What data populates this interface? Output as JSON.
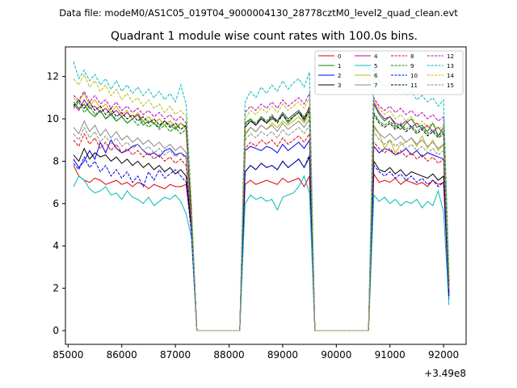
{
  "suptitle": "Data file: modeM0/AS1C05_019T04_9000004130_28778cztM0_level2_quad_clean.evt",
  "chart_data": {
    "type": "line",
    "title": "Quadrant 1 module wise count rates with 100.0s bins.",
    "xlabel": "",
    "ylabel": "",
    "x_offset_label": "+3.49e8",
    "xlim": [
      84950,
      92420
    ],
    "ylim": [
      -0.65,
      13.4
    ],
    "xticks": [
      85000,
      86000,
      87000,
      88000,
      89000,
      90000,
      91000,
      92000
    ],
    "yticks": [
      0,
      2,
      4,
      6,
      8,
      10,
      12
    ],
    "grid": false,
    "legend_position": "top-right",
    "x": [
      85100,
      85200,
      85300,
      85400,
      85500,
      85600,
      85700,
      85800,
      85900,
      86000,
      86100,
      86200,
      86300,
      86400,
      86500,
      86600,
      86700,
      86800,
      86900,
      87000,
      87100,
      87200,
      87300,
      87400,
      87500,
      88200,
      88300,
      88400,
      88500,
      88600,
      88700,
      88800,
      88900,
      89000,
      89100,
      89200,
      89300,
      89400,
      89500,
      89600,
      90600,
      90700,
      90800,
      90900,
      91000,
      91100,
      91200,
      91300,
      91400,
      91500,
      91600,
      91700,
      91800,
      91900,
      92000,
      92100
    ],
    "series": [
      {
        "name": "0",
        "color": "#dd0000",
        "dash": "solid",
        "values": [
          7.8,
          7.3,
          7.1,
          7.0,
          7.2,
          7.1,
          6.9,
          7.0,
          7.1,
          6.9,
          7.0,
          6.8,
          7.0,
          6.9,
          6.7,
          6.9,
          6.8,
          6.7,
          6.9,
          6.8,
          6.8,
          6.9,
          4.8,
          0,
          0,
          0,
          6.9,
          7.1,
          6.9,
          7.0,
          7.1,
          7.0,
          6.9,
          7.2,
          7.0,
          7.1,
          7.2,
          6.8,
          7.3,
          0,
          0,
          7.4,
          7.0,
          7.1,
          7.0,
          7.2,
          6.9,
          7.1,
          7.0,
          6.9,
          7.0,
          6.8,
          7.1,
          6.9,
          7.0,
          1.6
        ]
      },
      {
        "name": "1",
        "color": "#008800",
        "dash": "solid",
        "values": [
          10.8,
          10.5,
          10.7,
          10.3,
          10.1,
          10.4,
          10.0,
          10.2,
          9.9,
          10.1,
          9.8,
          10.0,
          10.2,
          9.7,
          9.9,
          9.8,
          9.6,
          9.9,
          9.7,
          9.5,
          9.8,
          9.6,
          5.5,
          0,
          0,
          0,
          9.8,
          10.0,
          9.7,
          10.1,
          9.8,
          10.0,
          9.9,
          10.2,
          9.8,
          10.1,
          10.3,
          9.9,
          10.4,
          0,
          0,
          10.7,
          10.2,
          9.9,
          10.1,
          9.7,
          9.5,
          9.8,
          10.0,
          9.6,
          9.7,
          9.4,
          9.8,
          9.2,
          9.6,
          2.4
        ]
      },
      {
        "name": "2",
        "color": "#0000ee",
        "dash": "solid",
        "values": [
          8.1,
          7.7,
          8.0,
          8.5,
          8.1,
          8.9,
          8.4,
          9.0,
          8.6,
          8.4,
          8.5,
          8.7,
          8.8,
          8.5,
          8.3,
          8.4,
          8.2,
          8.5,
          8.6,
          8.3,
          8.4,
          8.2,
          5.0,
          0,
          0,
          0,
          8.5,
          8.7,
          8.6,
          8.5,
          8.7,
          8.6,
          8.4,
          8.8,
          8.5,
          8.7,
          8.9,
          8.6,
          9.0,
          0,
          0,
          8.7,
          8.4,
          8.6,
          8.5,
          8.3,
          8.4,
          8.6,
          8.3,
          8.5,
          8.2,
          8.4,
          8.3,
          8.2,
          8.1,
          1.8
        ]
      },
      {
        "name": "3",
        "color": "#000000",
        "dash": "solid",
        "values": [
          8.3,
          8.0,
          8.6,
          8.1,
          8.4,
          8.2,
          8.3,
          8.0,
          8.2,
          7.9,
          8.1,
          7.8,
          8.0,
          7.7,
          7.9,
          7.6,
          7.8,
          7.5,
          7.7,
          7.4,
          7.6,
          7.3,
          4.9,
          0,
          0,
          0,
          7.5,
          7.8,
          7.6,
          7.9,
          7.7,
          7.8,
          7.6,
          8.0,
          7.7,
          7.9,
          8.1,
          7.7,
          8.2,
          0,
          0,
          8.0,
          7.6,
          7.5,
          7.7,
          7.4,
          7.6,
          7.3,
          7.5,
          7.4,
          7.3,
          7.2,
          7.4,
          7.1,
          7.3,
          1.7
        ]
      },
      {
        "name": "4",
        "color": "#bb00bb",
        "dash": "solid",
        "values": [
          10.7,
          10.4,
          10.9,
          10.5,
          10.6,
          10.3,
          10.5,
          10.2,
          10.4,
          10.1,
          10.3,
          10.0,
          10.2,
          9.9,
          10.1,
          9.8,
          10.0,
          9.7,
          9.9,
          9.6,
          9.8,
          9.5,
          5.6,
          0,
          0,
          0,
          9.6,
          9.9,
          9.7,
          10.0,
          9.8,
          10.1,
          9.9,
          10.3,
          10.0,
          10.2,
          10.4,
          10.0,
          10.6,
          0,
          0,
          10.8,
          10.3,
          10.0,
          10.1,
          9.8,
          9.7,
          9.9,
          9.6,
          9.8,
          9.5,
          9.7,
          9.4,
          9.6,
          9.3,
          2.3
        ]
      },
      {
        "name": "5",
        "color": "#00bbbb",
        "dash": "solid",
        "values": [
          6.8,
          7.3,
          7.1,
          6.7,
          6.5,
          6.6,
          6.8,
          6.4,
          6.5,
          6.2,
          6.6,
          6.3,
          6.2,
          6.0,
          6.3,
          5.9,
          6.1,
          6.3,
          6.2,
          6.4,
          6.1,
          5.5,
          4.4,
          0,
          0,
          0,
          6.0,
          6.4,
          6.2,
          6.3,
          6.1,
          6.2,
          5.7,
          6.3,
          6.4,
          6.5,
          6.8,
          7.3,
          6.5,
          0,
          0,
          6.4,
          6.1,
          6.3,
          6.0,
          6.2,
          5.9,
          6.1,
          6.0,
          6.2,
          5.8,
          6.1,
          5.9,
          6.6,
          5.6,
          1.2
        ]
      },
      {
        "name": "6",
        "color": "#bbbb00",
        "dash": "solid",
        "values": [
          11.0,
          10.8,
          11.2,
          10.6,
          10.9,
          10.5,
          10.7,
          10.3,
          10.6,
          10.2,
          10.4,
          10.0,
          10.3,
          9.9,
          10.1,
          9.8,
          10.0,
          9.7,
          9.9,
          9.6,
          9.8,
          9.5,
          5.7,
          0,
          0,
          0,
          9.2,
          9.6,
          9.4,
          9.7,
          9.5,
          9.8,
          9.6,
          9.9,
          9.7,
          9.9,
          10.1,
          9.8,
          10.2,
          0,
          0,
          9.7,
          9.3,
          8.6,
          9.0,
          8.4,
          8.8,
          8.9,
          9.1,
          8.7,
          9.2,
          8.6,
          9.0,
          8.5,
          8.8,
          2.0
        ]
      },
      {
        "name": "7",
        "color": "#888888",
        "dash": "solid",
        "values": [
          9.6,
          9.3,
          9.9,
          9.4,
          9.7,
          9.2,
          9.5,
          9.1,
          9.4,
          9.0,
          9.2,
          8.9,
          9.1,
          8.8,
          9.0,
          8.7,
          8.9,
          8.6,
          8.8,
          8.5,
          8.7,
          8.4,
          5.3,
          0,
          0,
          0,
          9.3,
          9.6,
          9.4,
          9.7,
          9.5,
          9.7,
          9.4,
          9.8,
          9.5,
          9.7,
          9.9,
          9.6,
          10.0,
          0,
          0,
          9.6,
          9.3,
          9.1,
          9.3,
          9.0,
          9.2,
          8.9,
          9.1,
          8.8,
          9.0,
          8.7,
          8.9,
          8.6,
          8.8,
          2.1
        ]
      },
      {
        "name": "8",
        "color": "#dd0000",
        "dash": "dashed",
        "values": [
          9.0,
          8.7,
          9.3,
          8.8,
          9.1,
          8.6,
          8.9,
          8.5,
          8.8,
          8.4,
          8.6,
          8.3,
          8.5,
          8.2,
          8.4,
          8.1,
          8.3,
          8.0,
          8.2,
          7.9,
          8.1,
          7.8,
          5.1,
          0,
          0,
          0,
          8.6,
          8.9,
          8.7,
          9.0,
          8.8,
          9.0,
          8.7,
          9.1,
          8.8,
          9.0,
          9.2,
          8.9,
          9.3,
          0,
          0,
          8.9,
          8.6,
          8.4,
          8.6,
          8.3,
          8.5,
          8.2,
          8.4,
          8.1,
          8.3,
          8.0,
          8.2,
          7.9,
          8.1,
          1.9
        ]
      },
      {
        "name": "9",
        "color": "#008800",
        "dash": "dashed",
        "values": [
          10.5,
          10.8,
          10.3,
          10.6,
          10.2,
          10.4,
          10.0,
          10.3,
          9.9,
          10.1,
          9.8,
          10.0,
          9.7,
          9.9,
          9.6,
          9.8,
          9.5,
          9.7,
          9.4,
          9.6,
          9.3,
          9.5,
          5.5,
          0,
          0,
          0,
          9.7,
          10.0,
          9.8,
          10.1,
          9.9,
          10.2,
          9.9,
          10.3,
          10.0,
          10.2,
          10.4,
          10.1,
          10.5,
          0,
          0,
          10.3,
          9.9,
          9.7,
          9.9,
          9.6,
          9.8,
          9.5,
          9.7,
          9.4,
          9.6,
          9.3,
          9.5,
          9.2,
          9.4,
          2.2
        ]
      },
      {
        "name": "10",
        "color": "#0000ee",
        "dash": "dashed",
        "values": [
          7.9,
          7.6,
          8.2,
          7.7,
          8.0,
          7.5,
          7.8,
          7.3,
          7.6,
          7.2,
          7.5,
          7.0,
          7.3,
          6.8,
          7.5,
          7.1,
          7.6,
          7.2,
          7.4,
          7.6,
          7.3,
          7.0,
          4.6,
          0,
          0,
          0,
          7.5,
          7.8,
          7.6,
          7.9,
          7.7,
          7.8,
          7.6,
          8.0,
          7.7,
          7.9,
          8.1,
          7.7,
          8.3,
          0,
          0,
          7.8,
          7.5,
          7.3,
          7.5,
          7.2,
          7.4,
          7.1,
          7.3,
          7.0,
          7.2,
          6.9,
          7.1,
          6.8,
          7.0,
          1.5
        ]
      },
      {
        "name": "11",
        "color": "#000000",
        "dash": "dashed",
        "values": [
          10.6,
          10.9,
          10.5,
          10.8,
          10.4,
          10.6,
          10.2,
          10.5,
          10.1,
          10.3,
          10.0,
          10.2,
          9.9,
          10.1,
          9.8,
          10.0,
          9.7,
          9.9,
          9.6,
          9.8,
          9.5,
          9.7,
          5.5,
          0,
          0,
          0,
          9.6,
          9.9,
          9.7,
          10.0,
          9.8,
          10.1,
          9.8,
          10.2,
          9.9,
          10.1,
          10.3,
          10.0,
          10.4,
          0,
          0,
          10.2,
          9.8,
          9.6,
          9.8,
          9.5,
          9.7,
          9.4,
          9.6,
          9.3,
          9.5,
          9.2,
          9.4,
          9.1,
          9.3,
          2.2
        ]
      },
      {
        "name": "12",
        "color": "#bb00bb",
        "dash": "dashed",
        "values": [
          11.1,
          10.9,
          11.3,
          10.8,
          11.1,
          10.7,
          10.9,
          10.5,
          10.8,
          10.4,
          10.6,
          10.3,
          10.5,
          10.2,
          10.4,
          10.1,
          10.3,
          10.0,
          10.2,
          9.9,
          10.1,
          9.8,
          5.8,
          0,
          0,
          0,
          10.3,
          10.6,
          10.4,
          10.7,
          10.5,
          10.8,
          10.5,
          10.9,
          10.6,
          10.8,
          11.0,
          10.7,
          11.2,
          0,
          0,
          11.0,
          10.6,
          10.4,
          10.6,
          10.3,
          10.5,
          10.2,
          10.4,
          10.1,
          10.3,
          10.0,
          10.2,
          9.9,
          10.1,
          2.5
        ]
      },
      {
        "name": "13",
        "color": "#00bbbb",
        "dash": "dashed",
        "values": [
          12.7,
          11.9,
          12.3,
          11.8,
          12.1,
          11.6,
          11.9,
          11.4,
          11.8,
          11.3,
          11.6,
          11.2,
          11.5,
          11.1,
          11.4,
          11.0,
          11.3,
          10.9,
          11.2,
          10.8,
          11.6,
          10.7,
          6.0,
          0,
          0,
          0,
          10.8,
          11.3,
          11.0,
          11.5,
          11.2,
          11.6,
          11.3,
          11.8,
          11.4,
          11.7,
          11.9,
          11.5,
          12.2,
          0,
          0,
          12.5,
          11.8,
          11.5,
          11.7,
          11.3,
          11.5,
          11.1,
          11.3,
          10.9,
          11.1,
          10.8,
          11.0,
          10.6,
          10.9,
          2.8
        ]
      },
      {
        "name": "14",
        "color": "#bbbb00",
        "dash": "dashed",
        "values": [
          11.9,
          11.6,
          12.1,
          11.5,
          11.8,
          11.3,
          11.6,
          11.1,
          11.4,
          10.9,
          11.2,
          10.8,
          11.0,
          10.6,
          10.9,
          10.5,
          10.7,
          10.3,
          10.6,
          10.2,
          10.4,
          10.1,
          5.9,
          0,
          0,
          0,
          10.0,
          10.4,
          10.2,
          10.5,
          10.3,
          10.6,
          10.3,
          10.7,
          10.4,
          10.6,
          10.8,
          10.5,
          11.0,
          0,
          0,
          10.9,
          10.5,
          10.2,
          10.4,
          10.0,
          10.2,
          9.9,
          10.1,
          9.7,
          9.9,
          9.6,
          9.8,
          9.5,
          9.7,
          2.4
        ]
      },
      {
        "name": "15",
        "color": "#888888",
        "dash": "dashed",
        "values": [
          9.3,
          9.0,
          9.6,
          9.1,
          9.4,
          8.9,
          9.2,
          8.8,
          9.1,
          8.7,
          8.9,
          8.6,
          8.8,
          8.5,
          8.7,
          8.4,
          8.6,
          8.3,
          8.5,
          8.2,
          8.4,
          8.1,
          5.2,
          0,
          0,
          0,
          9.0,
          9.3,
          9.1,
          9.4,
          9.2,
          9.4,
          9.1,
          9.5,
          9.2,
          9.4,
          9.6,
          9.3,
          9.7,
          0,
          0,
          9.4,
          9.0,
          8.8,
          9.0,
          8.7,
          8.9,
          8.6,
          8.8,
          8.5,
          8.7,
          8.4,
          8.6,
          8.3,
          8.5,
          2.0
        ]
      }
    ]
  }
}
